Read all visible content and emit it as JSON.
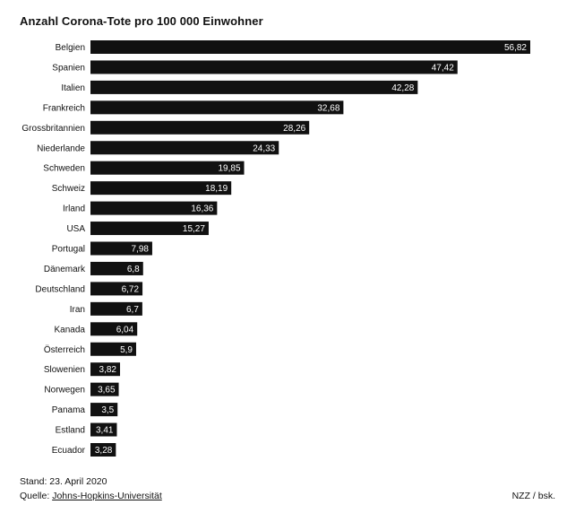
{
  "chart_data": {
    "type": "bar",
    "orientation": "horizontal",
    "title": "Anzahl Corona-Tote pro 100 000 Einwohner",
    "categories": [
      "Belgien",
      "Spanien",
      "Italien",
      "Frankreich",
      "Grossbritannien",
      "Niederlande",
      "Schweden",
      "Schweiz",
      "Irland",
      "USA",
      "Portugal",
      "Dänemark",
      "Deutschland",
      "Iran",
      "Kanada",
      "Österreich",
      "Slowenien",
      "Norwegen",
      "Panama",
      "Estland",
      "Ecuador"
    ],
    "values": [
      56.82,
      47.42,
      42.28,
      32.68,
      28.26,
      24.33,
      19.85,
      18.19,
      16.36,
      15.27,
      7.98,
      6.8,
      6.72,
      6.7,
      6.04,
      5.9,
      3.82,
      3.65,
      3.5,
      3.41,
      3.28
    ],
    "value_labels": [
      "56,82",
      "47,42",
      "42,28",
      "32,68",
      "28,26",
      "24,33",
      "19,85",
      "18,19",
      "16,36",
      "15,27",
      "7,98",
      "6,8",
      "6,72",
      "6,7",
      "6,04",
      "5,9",
      "3,82",
      "3,65",
      "3,5",
      "3,41",
      "3,28"
    ],
    "xlim": [
      0,
      56.82
    ],
    "bar_color": "#111111",
    "label_color": "#ffffff",
    "grid": false,
    "legend": "none"
  },
  "footer": {
    "stand": "Stand: 23. April 2020",
    "source_prefix": "Quelle: ",
    "source_link": "Johns-Hopkins-Universität",
    "credit": "NZZ / bsk."
  }
}
